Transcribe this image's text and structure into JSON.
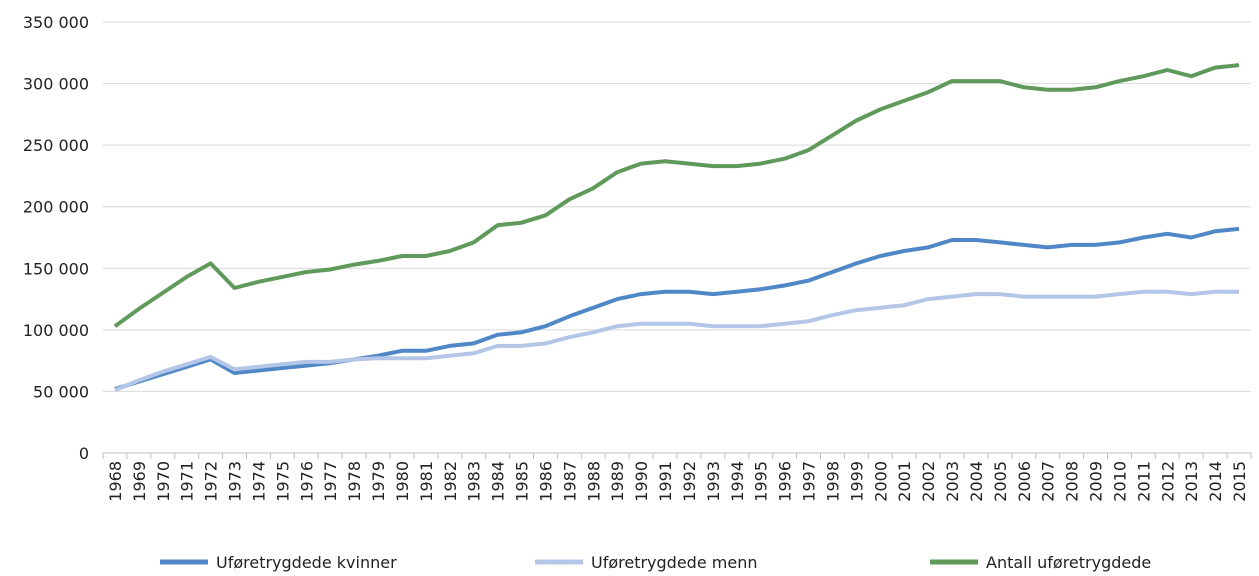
{
  "chart_data": {
    "type": "line",
    "categories": [
      "1968",
      "1969",
      "1970",
      "1971",
      "1972",
      "1973",
      "1974",
      "1975",
      "1976",
      "1977",
      "1978",
      "1979",
      "1980",
      "1981",
      "1982",
      "1983",
      "1984",
      "1985",
      "1986",
      "1987",
      "1988",
      "1989",
      "1990",
      "1991",
      "1992",
      "1993",
      "1994",
      "1995",
      "1996",
      "1997",
      "1998",
      "1999",
      "2000",
      "2001",
      "2002",
      "2003",
      "2004",
      "2005",
      "2006",
      "2007",
      "2008",
      "2009",
      "2010",
      "2011",
      "2012",
      "2013",
      "2014",
      "2015"
    ],
    "series": [
      {
        "name": "Uføretrygdede kvinner",
        "color": "#4f87c7",
        "values": [
          52000,
          58000,
          64000,
          70000,
          76000,
          65000,
          67000,
          69000,
          71000,
          73000,
          76000,
          79000,
          83000,
          83000,
          87000,
          89000,
          96000,
          98000,
          103000,
          111000,
          118000,
          125000,
          129000,
          131000,
          131000,
          129000,
          131000,
          133000,
          136000,
          140000,
          147000,
          154000,
          160000,
          164000,
          167000,
          173000,
          173000,
          171000,
          169000,
          167000,
          169000,
          169000,
          171000,
          175000,
          178000,
          175000,
          180000,
          182000
        ]
      },
      {
        "name": "Uføretrygdede menn",
        "color": "#b4c6e7",
        "values": [
          51000,
          59000,
          66000,
          72000,
          78000,
          68000,
          70000,
          72000,
          74000,
          74000,
          76000,
          77000,
          77000,
          77000,
          79000,
          81000,
          87000,
          87000,
          89000,
          94000,
          98000,
          103000,
          105000,
          105000,
          105000,
          103000,
          103000,
          103000,
          105000,
          107000,
          112000,
          116000,
          118000,
          120000,
          125000,
          127000,
          129000,
          129000,
          127000,
          127000,
          127000,
          127000,
          129000,
          131000,
          131000,
          129000,
          131000,
          131000
        ]
      },
      {
        "name": "Antall uføretrygdede",
        "color": "#5f9a5a",
        "values": [
          103000,
          117000,
          130000,
          143000,
          154000,
          134000,
          139000,
          143000,
          147000,
          149000,
          153000,
          156000,
          160000,
          160000,
          164000,
          171000,
          185000,
          187000,
          193000,
          206000,
          215000,
          228000,
          235000,
          237000,
          235000,
          233000,
          233000,
          235000,
          239000,
          246000,
          258000,
          270000,
          279000,
          286000,
          293000,
          302000,
          302000,
          302000,
          297000,
          295000,
          295000,
          297000,
          302000,
          306000,
          311000,
          306000,
          313000,
          315000
        ]
      }
    ],
    "ylim": [
      0,
      350000
    ],
    "yticks": [
      0,
      {
        "value": 50000,
        "label": "50 000"
      },
      {
        "value": 100000,
        "label": "100 000"
      },
      {
        "value": 150000,
        "label": "150 000"
      },
      {
        "value": 200000,
        "label": "200 000"
      },
      {
        "value": 250000,
        "label": "250 000"
      },
      {
        "value": 300000,
        "label": "300 000"
      },
      {
        "value": 350000,
        "label": "350 000"
      }
    ],
    "grid": true,
    "legend": "bottom"
  }
}
